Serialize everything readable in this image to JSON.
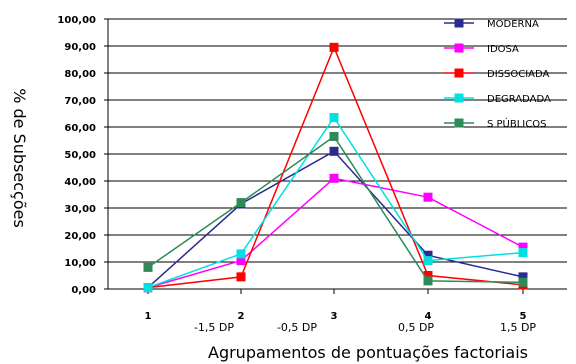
{
  "chart_data": {
    "type": "line",
    "xlabel": "Agrupamentos de pontuações factoriais",
    "ylabel": "% de Subsecções",
    "categories": [
      "1",
      "2",
      "3",
      "4",
      "5"
    ],
    "sd_labels": [
      "-1,5 DP",
      "-0,5 DP",
      "0,5 DP",
      "1,5 DP"
    ],
    "y_ticks": [
      "0,00",
      "10,00",
      "20,00",
      "30,00",
      "40,00",
      "50,00",
      "60,00",
      "70,00",
      "80,00",
      "90,00",
      "100,00"
    ],
    "ylim": [
      0,
      100
    ],
    "grid": true,
    "legend_position": "top-right",
    "series": [
      {
        "name": "MODERNA",
        "color": "#2b2b8f",
        "values": [
          0.5,
          31.5,
          51.0,
          12.5,
          4.5
        ]
      },
      {
        "name": "IDOSA",
        "color": "#ff00ff",
        "values": [
          0.5,
          10.5,
          41.0,
          34.0,
          15.5
        ]
      },
      {
        "name": "DISSOCIADA",
        "color": "#ff0000",
        "values": [
          0.5,
          4.5,
          89.5,
          5.0,
          1.5
        ]
      },
      {
        "name": "DEGRADADA",
        "color": "#00e0e0",
        "values": [
          0.5,
          13.0,
          63.5,
          10.5,
          13.5
        ]
      },
      {
        "name": "S PÚBLICOS",
        "color": "#2e8b57",
        "values": [
          8.0,
          32.0,
          56.5,
          3.0,
          2.5
        ]
      }
    ]
  }
}
